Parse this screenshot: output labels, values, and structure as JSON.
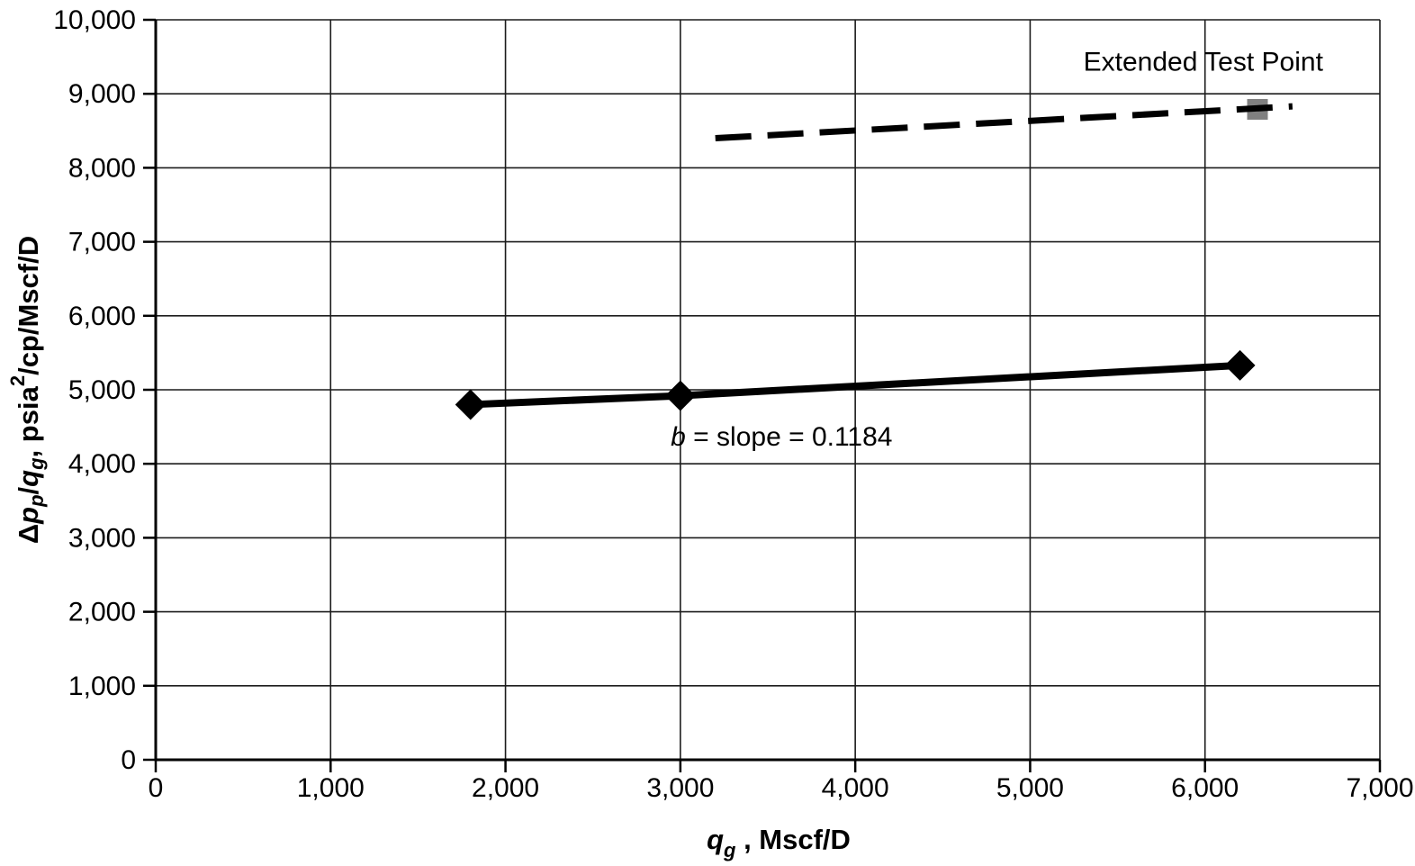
{
  "colors": {
    "background": "#ffffff",
    "text": "#000000",
    "grid": "#1c1c1c",
    "axis": "#000000",
    "series_line": "#000000",
    "extended_point_fill": "#808080"
  },
  "chart_data": {
    "type": "line",
    "title": "",
    "xlabel": "qg, Mscf/D",
    "ylabel": "Δpp/qg, psia2/cp/Mscf/D",
    "xlabel_parts": [
      {
        "text": "q",
        "italic": true
      },
      {
        "text": "g",
        "italic": true,
        "script": "sub"
      },
      {
        "text": " , Mscf/D"
      }
    ],
    "ylabel_parts": [
      {
        "text": "Δ"
      },
      {
        "text": "p",
        "italic": true
      },
      {
        "text": "p",
        "italic": true,
        "script": "sub"
      },
      {
        "text": "/"
      },
      {
        "text": "q",
        "italic": true
      },
      {
        "text": "g",
        "italic": true,
        "script": "sub"
      },
      {
        "text": ", psia"
      },
      {
        "text": "2",
        "script": "sup"
      },
      {
        "text": "/cp/Mscf/D"
      }
    ],
    "xlim": [
      0,
      7000
    ],
    "ylim": [
      0,
      10000
    ],
    "x_tick_values": [
      0,
      1000,
      2000,
      3000,
      4000,
      5000,
      6000,
      7000
    ],
    "x_tick_labels": [
      "0",
      "1,000",
      "2,000",
      "3,000",
      "4,000",
      "5,000",
      "6,000",
      "7,000"
    ],
    "y_tick_values": [
      0,
      1000,
      2000,
      3000,
      4000,
      5000,
      6000,
      7000,
      8000,
      9000,
      10000
    ],
    "y_tick_labels": [
      "0",
      "1,000",
      "2,000",
      "3,000",
      "4,000",
      "5,000",
      "6,000",
      "7,000",
      "8,000",
      "9,000",
      "10,000"
    ],
    "grid": true,
    "legend": "none",
    "series": [
      {
        "name": "stabilized-flow-test-line",
        "style": "solid",
        "marker": "diamond",
        "color": "#000000",
        "points": [
          [
            1800,
            4800
          ],
          [
            3000,
            4920
          ],
          [
            6200,
            5330
          ]
        ]
      },
      {
        "name": "extended-test-trend-line",
        "style": "dashed",
        "marker": "none",
        "color": "#000000",
        "points": [
          [
            3200,
            8400
          ],
          [
            6500,
            8830
          ]
        ]
      }
    ],
    "extended_test_point": {
      "x": 6300,
      "y": 8790,
      "marker": "square",
      "color": "#808080"
    },
    "annotations": [
      {
        "name": "extended-test-point-label",
        "text": "Extended Test Point",
        "parts": [
          {
            "text": "Extended Test Point"
          }
        ],
        "x": 5990,
        "y": 9310,
        "anchor": "middle"
      },
      {
        "name": "slope-label",
        "text": "b = slope = 0.1184",
        "parts": [
          {
            "text": "b",
            "italic": true
          },
          {
            "text": " = slope = 0.1184"
          }
        ],
        "x": 2945,
        "y": 4245,
        "anchor": "start"
      }
    ]
  }
}
